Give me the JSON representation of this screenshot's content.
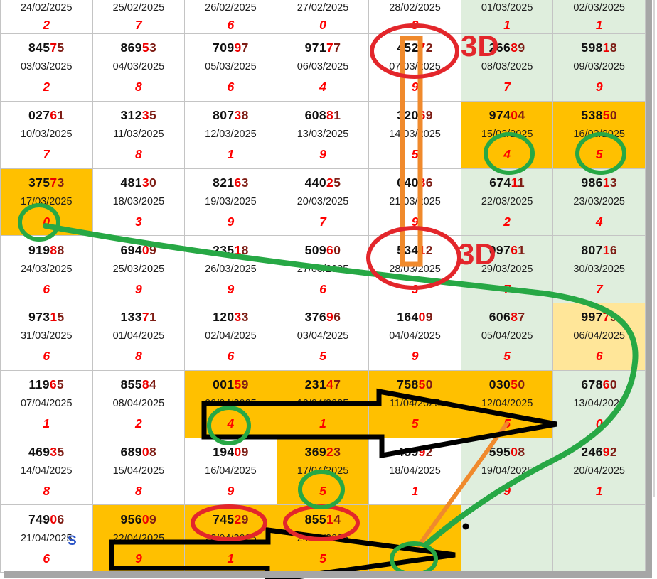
{
  "colors": {
    "cell_orange": "#FFC000",
    "cell_green": "#DFEEDD",
    "cell_yellow": "#FFE699",
    "digit_red": "#FF0000",
    "num_black": "#111111",
    "num_fourth": "#EE0000",
    "num_fifth": "#7D1D15",
    "annotation_red": "#E3262B",
    "annotation_green": "#27A845",
    "annotation_orange": "#F08A2C",
    "annotation_black": "#000000",
    "grid_line": "#C4C4C4",
    "shadow_gray": "#A6A6A6"
  },
  "labels": {
    "three_d_top": "3D",
    "three_d_mid": "3D",
    "stray_mark": "S"
  },
  "table": {
    "columns": 7,
    "partial_top_row": [
      {
        "date": "24/02/2025",
        "digit": "2",
        "bg": "white"
      },
      {
        "date": "25/02/2025",
        "digit": "7",
        "bg": "white"
      },
      {
        "date": "26/02/2025",
        "digit": "6",
        "bg": "white"
      },
      {
        "date": "27/02/2025",
        "digit": "0",
        "bg": "white"
      },
      {
        "date": "28/02/2025",
        "digit": "3",
        "bg": "white"
      },
      {
        "date": "01/03/2025",
        "digit": "1",
        "bg": "green"
      },
      {
        "date": "02/03/2025",
        "digit": "1",
        "bg": "green"
      }
    ],
    "rows": [
      [
        {
          "num": "84575",
          "date": "03/03/2025",
          "digit": "2",
          "bg": "white"
        },
        {
          "num": "86953",
          "date": "04/03/2025",
          "digit": "8",
          "bg": "white"
        },
        {
          "num": "70997",
          "date": "05/03/2025",
          "digit": "6",
          "bg": "white"
        },
        {
          "num": "97177",
          "date": "06/03/2025",
          "digit": "4",
          "bg": "white"
        },
        {
          "num": "45272",
          "date": "07/03/2025",
          "digit": "9",
          "bg": "white"
        },
        {
          "num": "26689",
          "date": "08/03/2025",
          "digit": "7",
          "bg": "green"
        },
        {
          "num": "59818",
          "date": "09/03/2025",
          "digit": "9",
          "bg": "green"
        }
      ],
      [
        {
          "num": "02761",
          "date": "10/03/2025",
          "digit": "7",
          "bg": "white"
        },
        {
          "num": "31235",
          "date": "11/03/2025",
          "digit": "8",
          "bg": "white"
        },
        {
          "num": "80738",
          "date": "12/03/2025",
          "digit": "1",
          "bg": "white"
        },
        {
          "num": "60881",
          "date": "13/03/2025",
          "digit": "9",
          "bg": "white"
        },
        {
          "num": "32069",
          "date": "14/03/2025",
          "digit": "5",
          "bg": "white"
        },
        {
          "num": "97404",
          "date": "15/03/2025",
          "digit": "4",
          "bg": "orange"
        },
        {
          "num": "53850",
          "date": "16/03/2025",
          "digit": "5",
          "bg": "orange"
        }
      ],
      [
        {
          "num": "37573",
          "date": "17/03/2025",
          "digit": "0",
          "bg": "orange"
        },
        {
          "num": "48130",
          "date": "18/03/2025",
          "digit": "3",
          "bg": "white"
        },
        {
          "num": "82163",
          "date": "19/03/2025",
          "digit": "9",
          "bg": "white"
        },
        {
          "num": "44025",
          "date": "20/03/2025",
          "digit": "7",
          "bg": "white"
        },
        {
          "num": "04036",
          "date": "21/03/2025",
          "digit": "9",
          "bg": "white"
        },
        {
          "num": "67411",
          "date": "22/03/2025",
          "digit": "2",
          "bg": "green"
        },
        {
          "num": "98613",
          "date": "23/03/2025",
          "digit": "4",
          "bg": "green"
        }
      ],
      [
        {
          "num": "91988",
          "date": "24/03/2025",
          "digit": "6",
          "bg": "white"
        },
        {
          "num": "69409",
          "date": "25/03/2025",
          "digit": "9",
          "bg": "white"
        },
        {
          "num": "23518",
          "date": "26/03/2025",
          "digit": "9",
          "bg": "white"
        },
        {
          "num": "50960",
          "date": "27/03/2025",
          "digit": "6",
          "bg": "white"
        },
        {
          "num": "53412",
          "date": "28/03/2025",
          "digit": "3",
          "bg": "white"
        },
        {
          "num": "09761",
          "date": "29/03/2025",
          "digit": "7",
          "bg": "green"
        },
        {
          "num": "80716",
          "date": "30/03/2025",
          "digit": "7",
          "bg": "green"
        }
      ],
      [
        {
          "num": "97315",
          "date": "31/03/2025",
          "digit": "6",
          "bg": "white"
        },
        {
          "num": "13371",
          "date": "01/04/2025",
          "digit": "8",
          "bg": "white"
        },
        {
          "num": "12033",
          "date": "02/04/2025",
          "digit": "6",
          "bg": "white"
        },
        {
          "num": "37696",
          "date": "03/04/2025",
          "digit": "5",
          "bg": "white"
        },
        {
          "num": "16409",
          "date": "04/04/2025",
          "digit": "9",
          "bg": "white"
        },
        {
          "num": "60687",
          "date": "05/04/2025",
          "digit": "5",
          "bg": "green"
        },
        {
          "num": "99779",
          "date": "06/04/2025",
          "digit": "6",
          "bg": "yellow"
        }
      ],
      [
        {
          "num": "11965",
          "date": "07/04/2025",
          "digit": "1",
          "bg": "white"
        },
        {
          "num": "85584",
          "date": "08/04/2025",
          "digit": "2",
          "bg": "white"
        },
        {
          "num": "00159",
          "date": "09/04/2025",
          "digit": "4",
          "bg": "orange"
        },
        {
          "num": "23147",
          "date": "10/04/2025",
          "digit": "1",
          "bg": "orange"
        },
        {
          "num": "75850",
          "date": "11/04/2025",
          "digit": "5",
          "bg": "orange"
        },
        {
          "num": "03050",
          "date": "12/04/2025",
          "digit": "5",
          "bg": "orange"
        },
        {
          "num": "67860",
          "date": "13/04/2025",
          "digit": "0",
          "bg": "green"
        }
      ],
      [
        {
          "num": "46935",
          "date": "14/04/2025",
          "digit": "8",
          "bg": "white"
        },
        {
          "num": "68908",
          "date": "15/04/2025",
          "digit": "8",
          "bg": "white"
        },
        {
          "num": "19409",
          "date": "16/04/2025",
          "digit": "9",
          "bg": "white"
        },
        {
          "num": "36923",
          "date": "17/04/2025",
          "digit": "5",
          "bg": "orange"
        },
        {
          "num": "45992",
          "date": "18/04/2025",
          "digit": "1",
          "bg": "white"
        },
        {
          "num": "59508",
          "date": "19/04/2025",
          "digit": "9",
          "bg": "green"
        },
        {
          "num": "24692",
          "date": "20/04/2025",
          "digit": "1",
          "bg": "green"
        }
      ],
      [
        {
          "num": "74906",
          "date": "21/04/2025",
          "digit": "6",
          "bg": "white"
        },
        {
          "num": "95609",
          "date": "22/04/2025",
          "digit": "9",
          "bg": "orange"
        },
        {
          "num": "74529",
          "date": "23/04/2025",
          "digit": "1",
          "bg": "orange"
        },
        {
          "num": "85514",
          "date": "24/04/2025",
          "digit": "5",
          "bg": "orange"
        },
        {
          "bg": "orange"
        },
        {
          "bg": "green"
        },
        {
          "bg": "green"
        }
      ]
    ]
  },
  "annotations": [
    {
      "name": "red-ellipse-45272",
      "marks": "45272 on 07/03/2025"
    },
    {
      "name": "red-ellipse-53412",
      "marks": "53412 on 28/03/2025"
    },
    {
      "name": "red-ellipse-74529",
      "marks": "74529 on 23/04/2025"
    },
    {
      "name": "red-ellipse-85514",
      "marks": "85514 on 24/04/2025"
    },
    {
      "name": "green-circle-digit-4-15-03",
      "marks": "digit 4 on 15/03/2025"
    },
    {
      "name": "green-circle-digit-5-16-03",
      "marks": "digit 5 on 16/03/2025"
    },
    {
      "name": "green-circle-digit-0-17-03",
      "marks": "digit 0 on 17/03/2025"
    },
    {
      "name": "green-circle-digit-4-09-04",
      "marks": "digit 4 on 09/04/2025"
    },
    {
      "name": "green-circle-digit-5-17-04",
      "marks": "digit 5 on 17/04/2025"
    },
    {
      "name": "green-circle-bottom",
      "marks": "empty cell after 24/04/2025"
    },
    {
      "name": "orange-rectangle-highlight",
      "marks": "column stripe from 45272 down to 53412"
    },
    {
      "name": "orange-line",
      "marks": "link from digit 5 of 12/04 to bottom circle"
    },
    {
      "name": "green-curve",
      "marks": "sweep from digit 0 of 17/03 to bottom circle"
    },
    {
      "name": "black-arrow-mid",
      "marks": "row of digits 09/04-12/04"
    },
    {
      "name": "black-arrow-bottom",
      "marks": "row of digits 22/04-24/04"
    },
    {
      "name": "black-dot",
      "marks": "point near 19/04 cell"
    }
  ]
}
